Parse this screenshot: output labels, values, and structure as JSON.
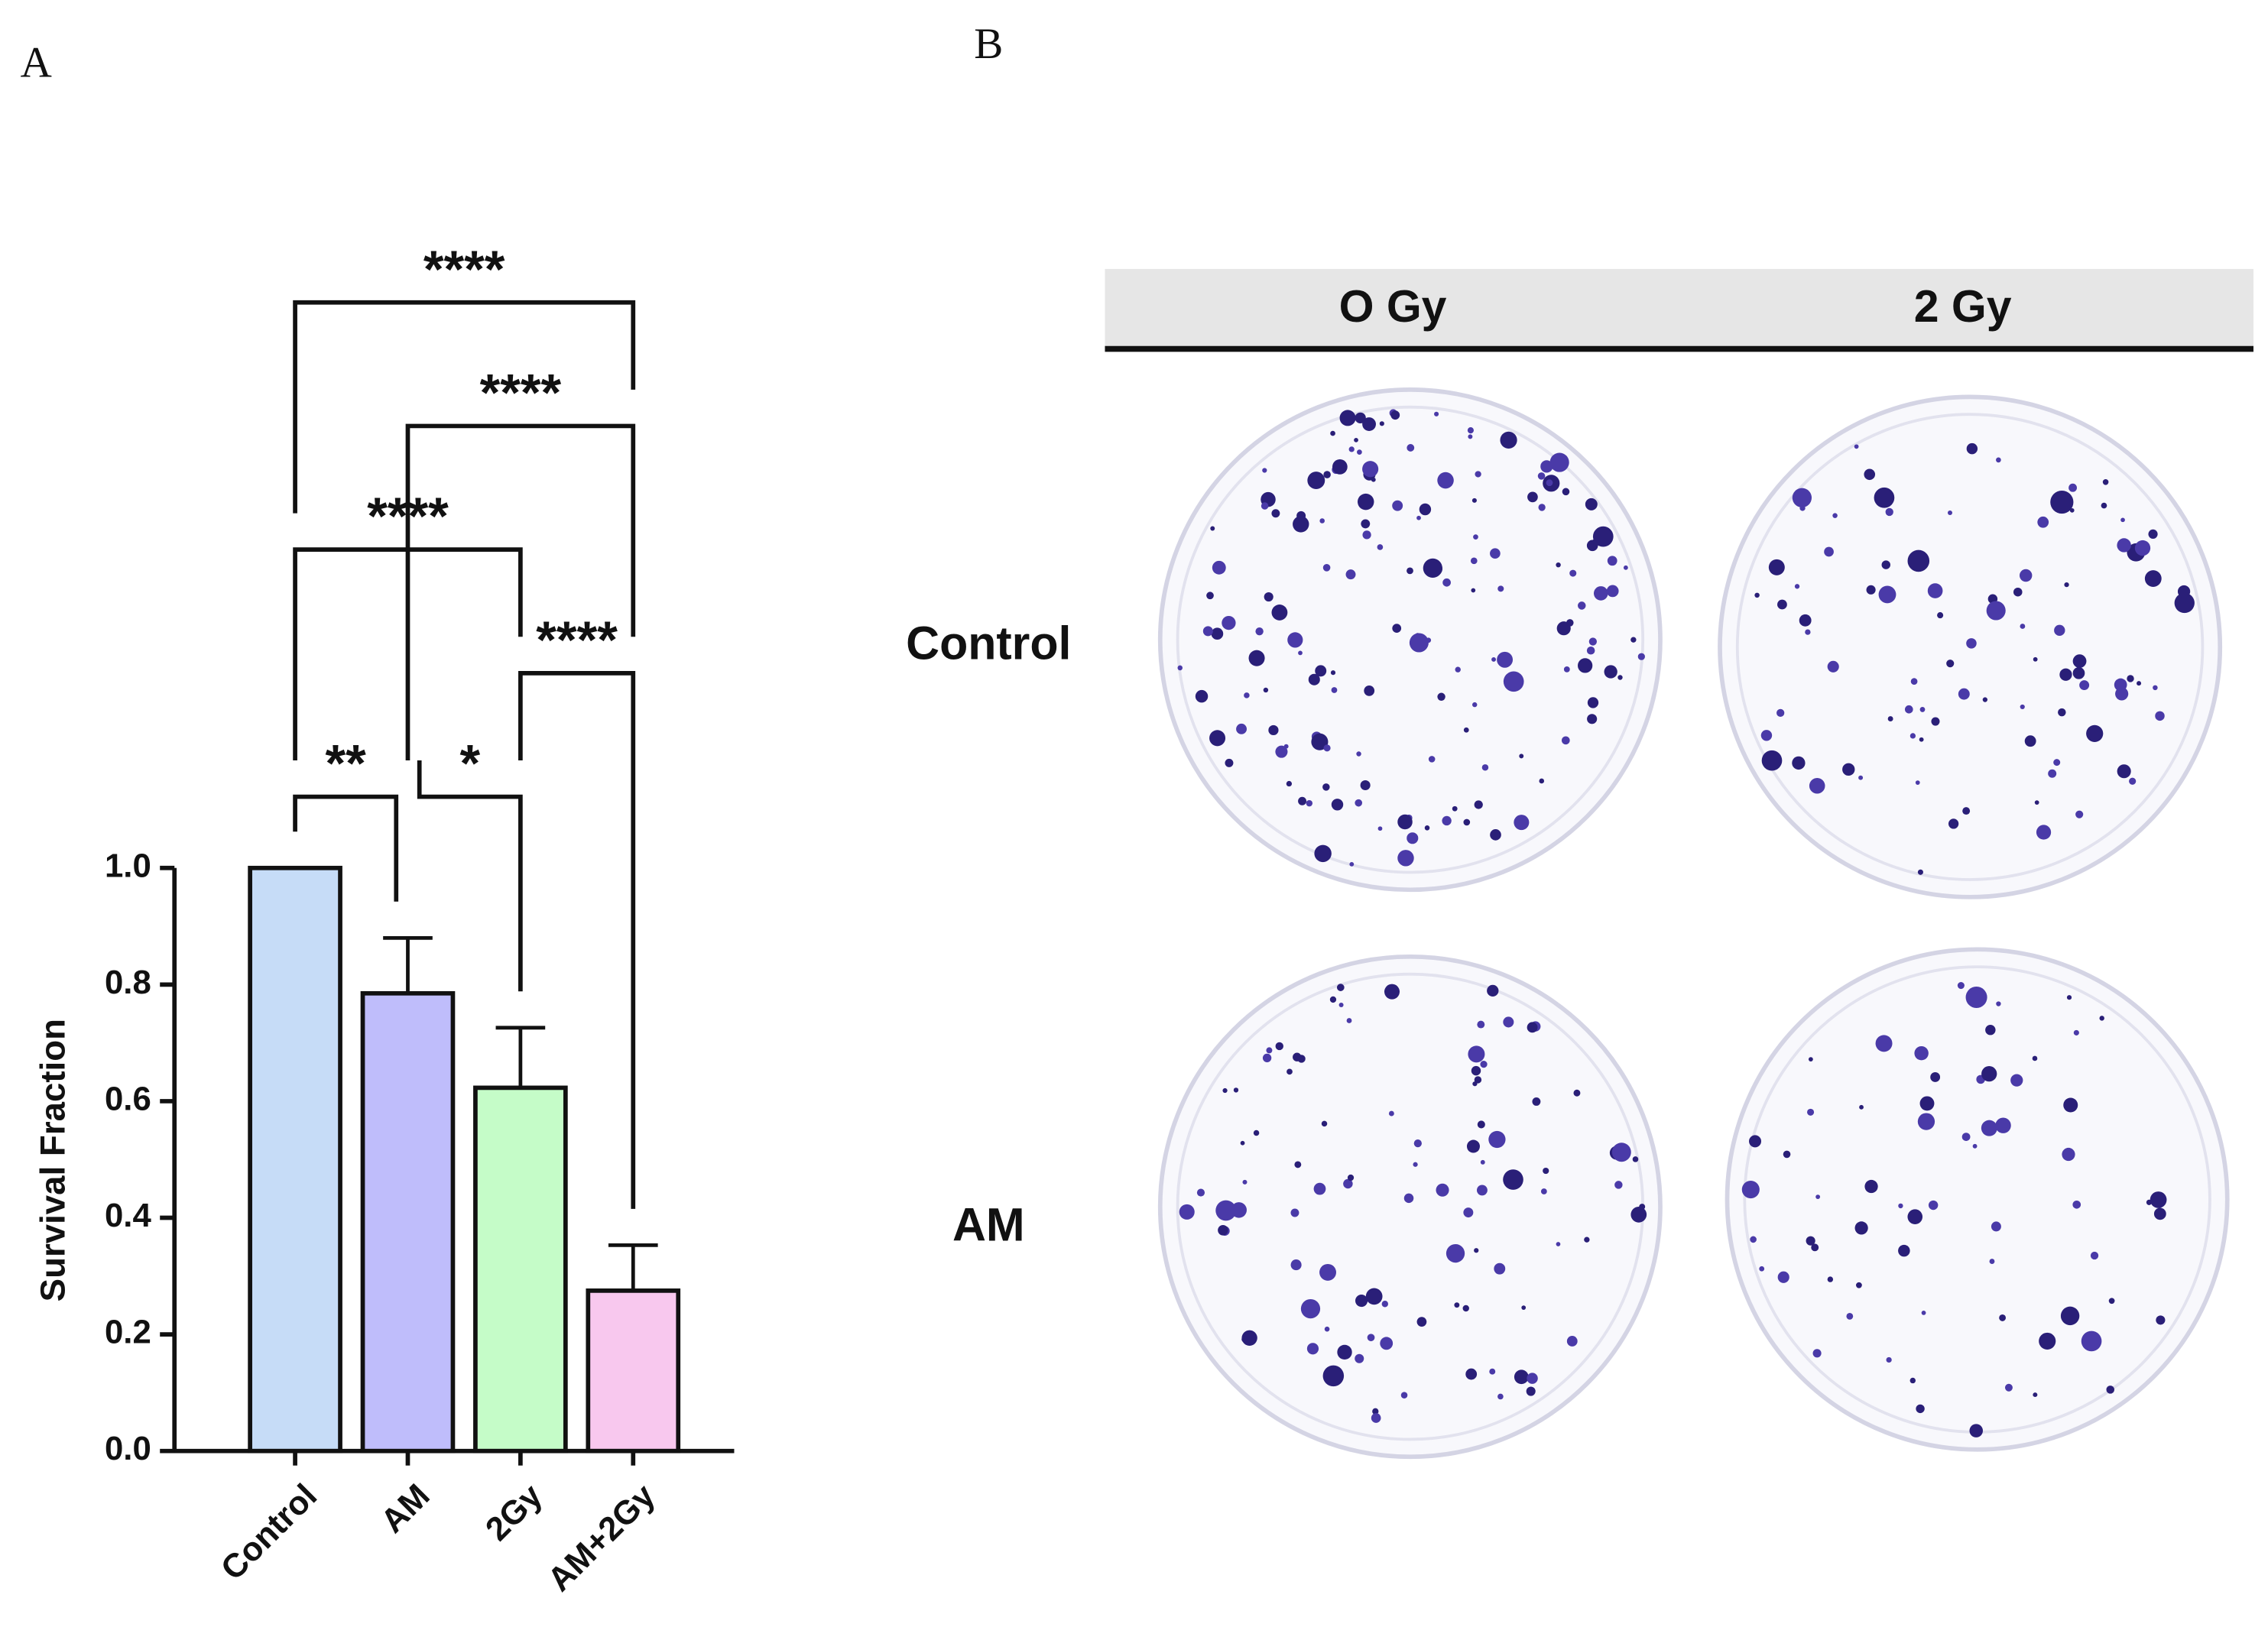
{
  "chart_data": {
    "type": "bar",
    "ylabel": "Survival Fraction",
    "categories": [
      "Control",
      "AM",
      "2Gy",
      "AM+2Gy"
    ],
    "values": [
      1.0,
      0.785,
      0.623,
      0.275
    ],
    "errors": [
      null,
      0.095,
      0.103,
      0.078
    ],
    "colors": [
      "#c6dcf7",
      "#bfbdfb",
      "#c5fcc8",
      "#f8c8ee"
    ],
    "ylim": [
      0,
      1
    ],
    "yticks": [
      {
        "value": 0,
        "label": "0.0"
      },
      0.2,
      0.4,
      0.6,
      0.8,
      {
        "value": 1,
        "label": "1.0"
      }
    ],
    "annotations": [
      {
        "label": "**",
        "from": "Control",
        "to": "AM"
      },
      {
        "label": "*",
        "from": "AM",
        "to": "2Gy"
      },
      {
        "label": "****",
        "from": "2Gy",
        "to": "AM+2Gy"
      },
      {
        "label": "****",
        "from": "Control",
        "to": "2Gy"
      },
      {
        "label": "****",
        "from": "AM",
        "to": "AM+2Gy"
      },
      {
        "label": "****",
        "from": "Control",
        "to": "AM+2Gy"
      }
    ]
  },
  "panel_labels": [
    "A",
    "B"
  ],
  "plate_grid": {
    "columns": [
      "O Gy",
      "2 Gy"
    ],
    "rows": [
      "Control",
      "AM"
    ]
  }
}
